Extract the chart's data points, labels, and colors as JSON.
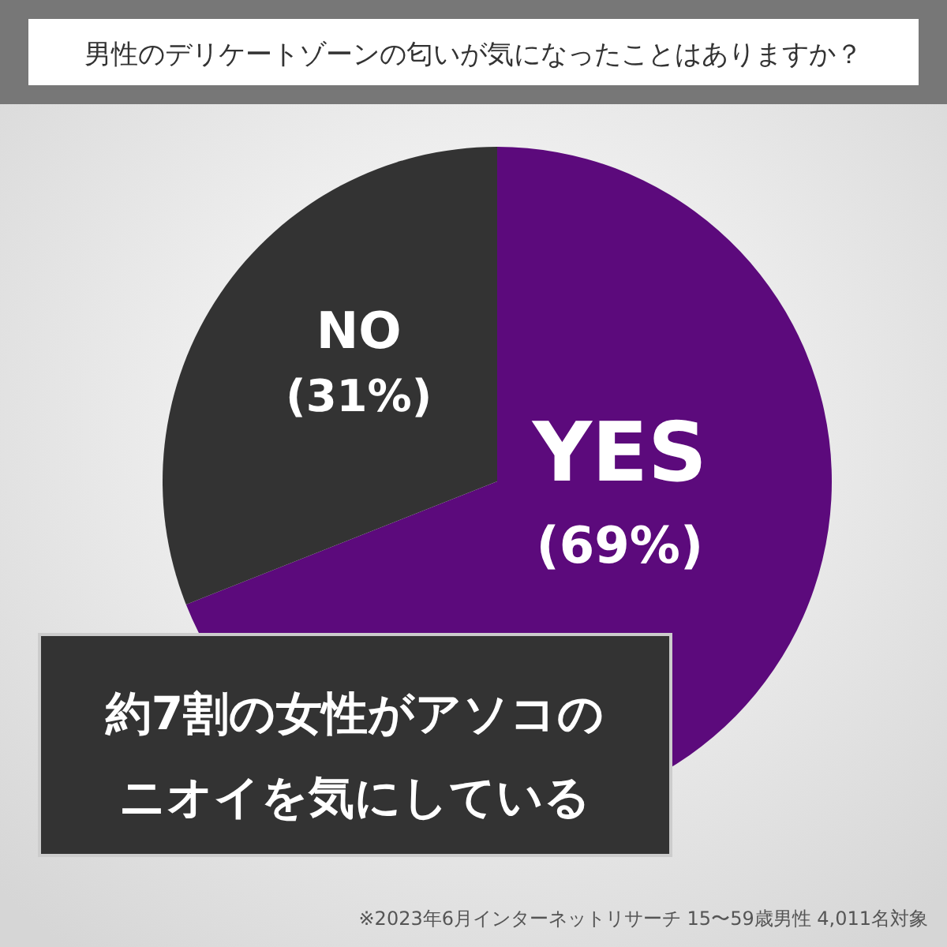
{
  "chart_data": {
    "type": "pie",
    "title": "男性のデリケートゾーンの匂いが気になったことはありますか？",
    "categories": [
      "YES",
      "NO"
    ],
    "values": [
      69,
      31
    ],
    "colors": [
      "#5c0a7c",
      "#333333"
    ],
    "value_labels": [
      "(69%)",
      "(31%)"
    ],
    "annotations": [
      "約7割の女性がアソコのニオイを気にしている",
      "※2023年6月インターネットリサーチ 15〜59歳男性 4,011名対象"
    ]
  }
}
